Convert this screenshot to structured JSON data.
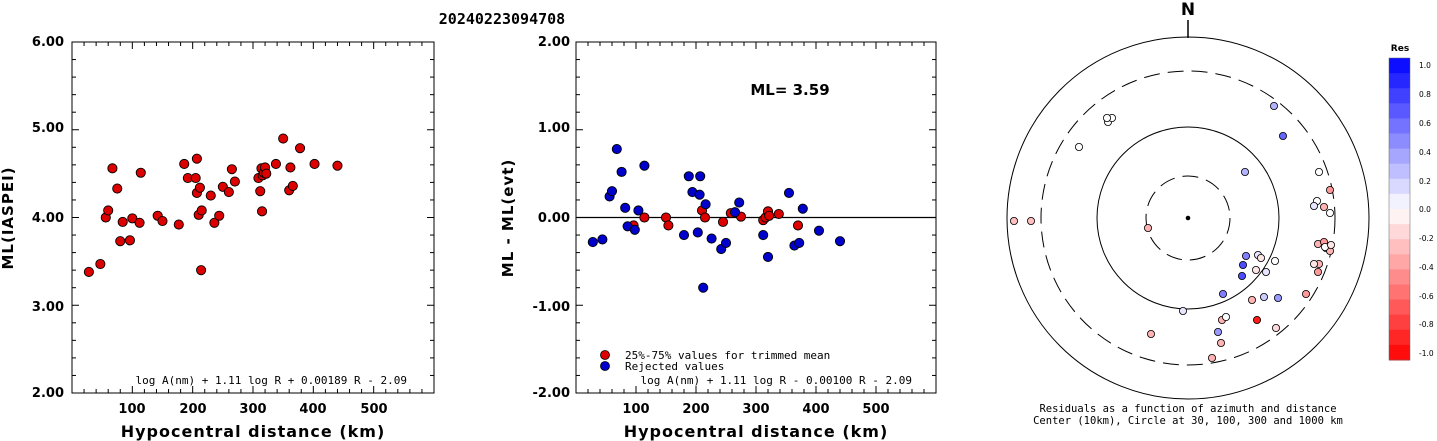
{
  "title": "20240223094708",
  "chart_data": [
    {
      "type": "scatter",
      "xlabel": "Hypocentral distance (km)",
      "ylabel": "ML(IASPEI)",
      "xlim": [
        0,
        600
      ],
      "ylim": [
        2.0,
        6.0
      ],
      "xticks": [
        "100",
        "200",
        "300",
        "400",
        "500"
      ],
      "yticks": [
        "2.00",
        "3.00",
        "4.00",
        "5.00",
        "6.00"
      ],
      "formula": "log A(nm) + 1.11 log R + 0.00189 R - 2.09",
      "series": [
        {
          "color": "#dd0000",
          "points": [
            [
              28,
              3.38
            ],
            [
              47,
              3.47
            ],
            [
              56,
              4.0
            ],
            [
              60,
              4.08
            ],
            [
              67,
              4.56
            ],
            [
              75,
              4.33
            ],
            [
              80,
              3.73
            ],
            [
              84,
              3.95
            ],
            [
              96,
              3.74
            ],
            [
              100,
              3.99
            ],
            [
              112,
              3.94
            ],
            [
              114,
              4.51
            ],
            [
              142,
              4.02
            ],
            [
              150,
              3.96
            ],
            [
              177,
              3.92
            ],
            [
              186,
              4.61
            ],
            [
              192,
              4.45
            ],
            [
              205,
              4.45
            ],
            [
              207,
              4.67
            ],
            [
              207,
              4.28
            ],
            [
              210,
              4.03
            ],
            [
              212,
              4.34
            ],
            [
              214,
              3.4
            ],
            [
              215,
              4.08
            ],
            [
              230,
              4.25
            ],
            [
              236,
              3.94
            ],
            [
              244,
              4.02
            ],
            [
              250,
              4.35
            ],
            [
              260,
              4.29
            ],
            [
              265,
              4.55
            ],
            [
              270,
              4.41
            ],
            [
              309,
              4.45
            ],
            [
              312,
              4.3
            ],
            [
              314,
              4.56
            ],
            [
              315,
              4.07
            ],
            [
              316,
              4.48
            ],
            [
              318,
              4.51
            ],
            [
              320,
              4.57
            ],
            [
              322,
              4.5
            ],
            [
              338,
              4.61
            ],
            [
              350,
              4.9
            ],
            [
              360,
              4.31
            ],
            [
              362,
              4.57
            ],
            [
              366,
              4.36
            ],
            [
              378,
              4.79
            ],
            [
              402,
              4.61
            ],
            [
              440,
              4.59
            ]
          ]
        }
      ]
    },
    {
      "type": "scatter",
      "xlabel": "Hypocentral distance (km)",
      "ylabel": "ML - ML(evt)",
      "xlim": [
        0,
        600
      ],
      "ylim": [
        -2.0,
        2.0
      ],
      "xticks": [
        "100",
        "200",
        "300",
        "400",
        "500"
      ],
      "yticks": [
        "-2.00",
        "-1.00",
        "0.00",
        "1.00",
        "2.00"
      ],
      "annotation": "ML= 3.59",
      "formula": "log A(nm) + 1.11 log R - 0.00100 R - 2.09",
      "series": [
        {
          "name": "25%-75% values for trimmed mean",
          "color": "#dd0000",
          "points": [
            [
              96,
              -0.09
            ],
            [
              114,
              0.0
            ],
            [
              150,
              0.0
            ],
            [
              154,
              -0.09
            ],
            [
              210,
              0.08
            ],
            [
              215,
              0.0
            ],
            [
              245,
              -0.05
            ],
            [
              258,
              0.05
            ],
            [
              275,
              0.01
            ],
            [
              312,
              -0.03
            ],
            [
              316,
              0.0
            ],
            [
              320,
              0.07
            ],
            [
              322,
              0.02
            ],
            [
              338,
              0.04
            ],
            [
              370,
              -0.09
            ]
          ]
        },
        {
          "name": "Rejected values",
          "color": "#0000cc",
          "points": [
            [
              28,
              -0.28
            ],
            [
              44,
              -0.25
            ],
            [
              56,
              0.24
            ],
            [
              60,
              0.3
            ],
            [
              68,
              0.78
            ],
            [
              76,
              0.52
            ],
            [
              82,
              0.11
            ],
            [
              86,
              -0.1
            ],
            [
              98,
              -0.14
            ],
            [
              104,
              0.08
            ],
            [
              114,
              0.59
            ],
            [
              180,
              -0.2
            ],
            [
              188,
              0.47
            ],
            [
              194,
              0.29
            ],
            [
              203,
              -0.17
            ],
            [
              206,
              0.26
            ],
            [
              207,
              0.47
            ],
            [
              212,
              -0.8
            ],
            [
              216,
              0.15
            ],
            [
              226,
              -0.24
            ],
            [
              242,
              -0.36
            ],
            [
              250,
              -0.29
            ],
            [
              265,
              0.06
            ],
            [
              272,
              0.17
            ],
            [
              312,
              -0.2
            ],
            [
              320,
              -0.45
            ],
            [
              355,
              0.28
            ],
            [
              364,
              -0.32
            ],
            [
              372,
              -0.29
            ],
            [
              378,
              0.1
            ],
            [
              405,
              -0.15
            ],
            [
              440,
              -0.27
            ]
          ]
        }
      ]
    },
    {
      "type": "scatter",
      "north_label": "N",
      "caption": [
        "Residuals as a function of azimuth and distance",
        "Center (10km), Circle at 30, 100, 300 and 1000 km"
      ],
      "colorbar": {
        "title": "Res",
        "ticks": [
          "1.0",
          "0.8",
          "0.6",
          "0.4",
          "0.2",
          "0.0",
          "-0.2",
          "-0.4",
          "-0.6",
          "-0.8",
          "-1.0"
        ]
      },
      "points": [
        [
          -80,
          96,
          0.0
        ],
        [
          -76,
          100,
          0.0
        ],
        [
          -81,
          100,
          0.0
        ],
        [
          -109,
          71,
          0.0
        ],
        [
          -174,
          -3,
          -0.25
        ],
        [
          -157,
          -3,
          -0.25
        ],
        [
          -40,
          -10,
          -0.3
        ],
        [
          -37,
          -116,
          -0.3
        ],
        [
          86,
          112,
          0.3
        ],
        [
          95,
          82,
          0.6
        ],
        [
          57,
          46,
          0.3
        ],
        [
          58,
          -38,
          0.5
        ],
        [
          55,
          -47,
          0.7
        ],
        [
          54,
          -58,
          0.7
        ],
        [
          70,
          -37,
          0.1
        ],
        [
          73,
          -40,
          -0.1
        ],
        [
          68,
          -52,
          -0.1
        ],
        [
          78,
          -54,
          0.1
        ],
        [
          87,
          -43,
          0.0
        ],
        [
          35,
          -76,
          0.5
        ],
        [
          76,
          -79,
          0.2
        ],
        [
          64,
          -82,
          -0.3
        ],
        [
          90,
          -80,
          0.4
        ],
        [
          118,
          -76,
          -0.4
        ],
        [
          34,
          -102,
          -0.3
        ],
        [
          38,
          -99,
          0.0
        ],
        [
          69,
          -102,
          -0.9
        ],
        [
          30,
          -114,
          0.4
        ],
        [
          -5,
          -93,
          0.1
        ],
        [
          33,
          -125,
          -0.3
        ],
        [
          24,
          -140,
          -0.3
        ],
        [
          88,
          -110,
          -0.15
        ],
        [
          131,
          -46,
          -0.3
        ],
        [
          130,
          -26,
          -0.3
        ],
        [
          136,
          -24,
          -0.4
        ],
        [
          138,
          -30,
          -0.4
        ],
        [
          142,
          -33,
          -0.3
        ],
        [
          126,
          -46,
          -0.1
        ],
        [
          130,
          -54,
          -0.4
        ],
        [
          142,
          5,
          0.0
        ],
        [
          136,
          11,
          -0.3
        ],
        [
          129,
          17,
          0.0
        ],
        [
          126,
          12,
          0.1
        ],
        [
          131,
          46,
          0.0
        ],
        [
          142,
          28,
          -0.4
        ],
        [
          137,
          -29,
          0.0
        ],
        [
          143,
          -27,
          -0.1
        ]
      ]
    }
  ]
}
